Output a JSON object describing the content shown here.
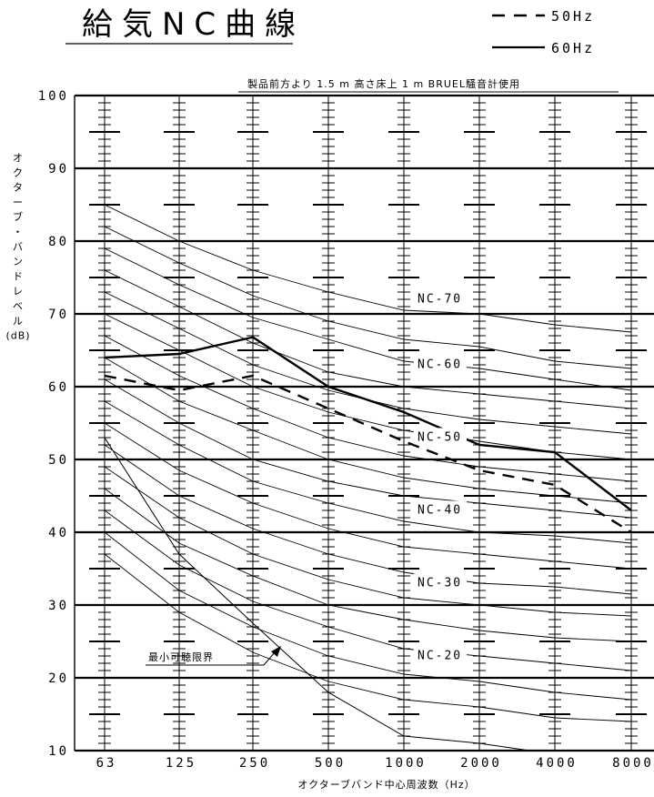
{
  "title": "給気NC曲線",
  "legend": [
    {
      "label": "50Hz",
      "dash": true
    },
    {
      "label": "60Hz",
      "dash": false
    }
  ],
  "condition_note": "製品前方より 1.5 m 高さ床上 1 m BRUEL騒音計使用",
  "chart_data": {
    "type": "line",
    "title": "給気NC曲線",
    "xlabel": "オクターブバンド中心周波数（Hz）",
    "ylabel_lines": [
      "オ",
      "ク",
      "タ",
      "ー",
      "ブ",
      "・",
      "バ",
      "ン",
      "ド",
      "レ",
      "ベ",
      "ル",
      "(dB)"
    ],
    "categories": [
      "63",
      "125",
      "250",
      "500",
      "1000",
      "2000",
      "4000",
      "8000"
    ],
    "y_ticks": [
      "10",
      "20",
      "30",
      "40",
      "50",
      "60",
      "70",
      "80",
      "90",
      "100"
    ],
    "ylim": [
      10,
      100
    ],
    "series": [
      {
        "name": "50Hz",
        "dash": true,
        "values": [
          61.5,
          59.5,
          61.5,
          57,
          52.5,
          48.5,
          46.5,
          40
        ]
      },
      {
        "name": "60Hz",
        "dash": false,
        "values": [
          64,
          64.5,
          66.8,
          60,
          56.5,
          52,
          51,
          43
        ]
      }
    ],
    "nc_curves": [
      [
        85,
        80,
        76,
        73,
        70.5,
        70,
        68.5,
        67.5
      ],
      [
        82,
        77,
        72.5,
        69,
        66.5,
        65.5,
        63.5,
        62.5
      ],
      [
        79,
        74,
        69.5,
        66.5,
        63.5,
        62.5,
        61,
        59.5
      ],
      [
        76,
        71,
        66,
        62,
        60,
        59,
        58,
        57
      ],
      [
        73,
        68,
        63,
        59.5,
        57,
        55.5,
        54.5,
        53.5
      ],
      [
        70,
        65,
        60,
        56.5,
        54,
        52.5,
        51,
        50
      ],
      [
        67,
        61.5,
        57,
        53,
        50.5,
        49,
        48,
        47
      ],
      [
        64,
        58,
        54,
        50,
        47.5,
        46,
        45,
        44
      ],
      [
        61,
        55,
        50,
        47,
        45,
        44,
        43,
        42
      ],
      [
        58,
        52,
        47,
        44,
        41.5,
        40,
        39.5,
        38.5
      ],
      [
        55,
        48.5,
        44,
        40.5,
        38,
        37,
        36,
        35
      ],
      [
        52,
        45,
        40.5,
        37,
        34.5,
        33,
        32.5,
        31.5
      ],
      [
        49,
        42,
        37,
        33.5,
        31,
        30,
        29,
        28.5
      ],
      [
        46,
        38.5,
        34,
        30,
        28,
        26.5,
        25.5,
        25
      ],
      [
        43,
        35.5,
        30.5,
        27,
        24,
        23,
        22,
        21
      ],
      [
        40,
        32,
        27,
        23,
        20.5,
        19.5,
        18,
        17
      ],
      [
        37,
        29,
        23.5,
        19.5,
        17,
        16,
        14.5,
        14
      ]
    ],
    "threshold_curve": [
      53,
      37,
      27.5,
      18,
      12,
      11,
      9.5,
      8
    ],
    "nc_labels": [
      {
        "text": "NC-70",
        "db": 71.7
      },
      {
        "text": "NC-60",
        "db": 62.7
      },
      {
        "text": "NC-50",
        "db": 52.7
      },
      {
        "text": "NC-40",
        "db": 42.7
      },
      {
        "text": "NC-30",
        "db": 32.7
      },
      {
        "text": "NC-20",
        "db": 22.7
      }
    ],
    "threshold_label": "最小可聴限界"
  }
}
